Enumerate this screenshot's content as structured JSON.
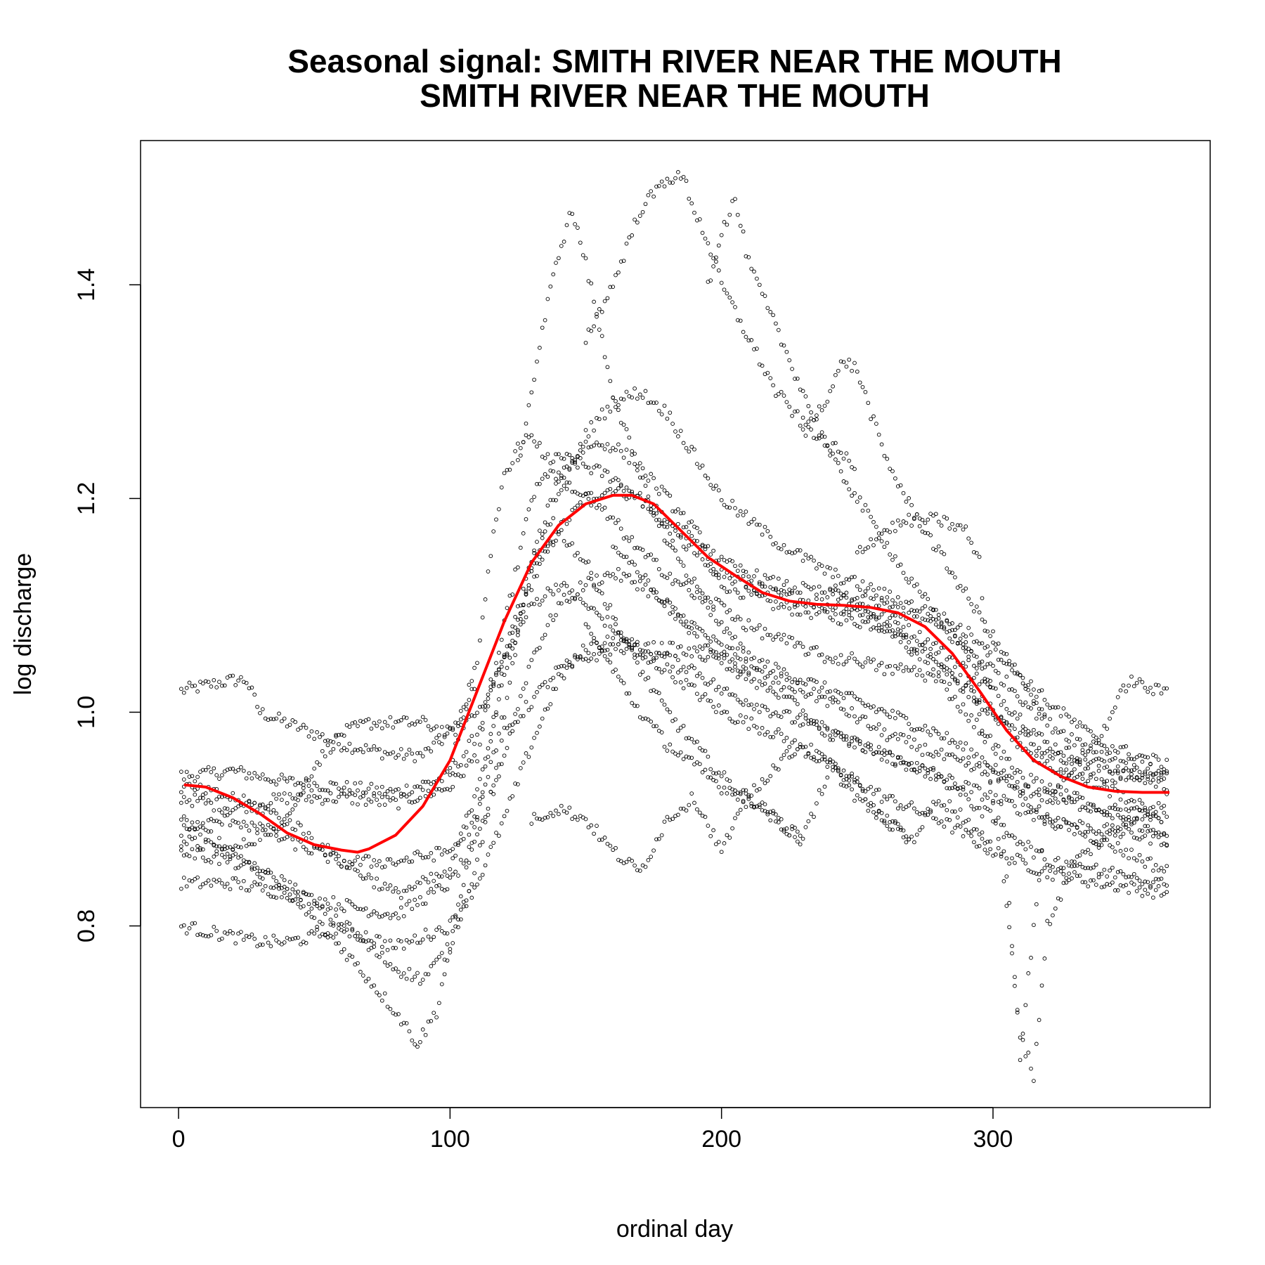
{
  "chart_data": {
    "type": "scatter",
    "title": "Seasonal signal: SMITH RIVER NEAR THE MOUTH",
    "subtitle": "SMITH RIVER NEAR THE MOUTH",
    "xlabel": "ordinal day",
    "ylabel": "log discharge",
    "xlim": [
      -14,
      380
    ],
    "ylim": [
      0.63,
      1.535
    ],
    "x_ticks": [
      0,
      100,
      200,
      300
    ],
    "x_tick_labels": [
      "0",
      "100",
      "200",
      "300"
    ],
    "y_ticks": [
      0.8,
      1.0,
      1.2,
      1.4
    ],
    "y_tick_labels": [
      "0.8",
      "1.0",
      "1.2",
      "1.4"
    ],
    "grid": false,
    "legend": "none",
    "colors": {
      "points": "#000000",
      "smooth": "#ff0000",
      "frame": "#000000"
    },
    "series": [
      {
        "kind": "points",
        "description_in_chart": "daily observations, open circles",
        "traces": [
          {
            "x": [
              1,
              10,
              20,
              25,
              30,
              40,
              60,
              80,
              90,
              100,
              105,
              110
            ],
            "y": [
              1.02,
              1.025,
              1.03,
              1.03,
              1.0,
              0.99,
              0.97,
              0.96,
              0.96,
              0.98,
              1.0,
              1.03
            ]
          },
          {
            "x": [
              1,
              20,
              40,
              60,
              80,
              100,
              110,
              120,
              130,
              140,
              150,
              160,
              170,
              180,
              190,
              200,
              220,
              240,
              260,
              280,
              300,
              320,
              340,
              365
            ],
            "y": [
              0.94,
              0.945,
              0.935,
              0.93,
              0.925,
              0.94,
              0.98,
              1.05,
              1.12,
              1.17,
              1.2,
              1.21,
              1.2,
              1.17,
              1.15,
              1.12,
              1.1,
              1.09,
              1.08,
              1.05,
              1.0,
              0.96,
              0.94,
              0.94
            ]
          },
          {
            "x": [
              1,
              20,
              40,
              60,
              80,
              100,
              110,
              120,
              130,
              140,
              150,
              160,
              170,
              180,
              190,
              200,
              220,
              240,
              260,
              280,
              300,
              320,
              340,
              365
            ],
            "y": [
              0.92,
              0.91,
              0.92,
              0.92,
              0.915,
              0.93,
              0.96,
              1.08,
              1.2,
              1.24,
              1.23,
              1.22,
              1.2,
              1.18,
              1.16,
              1.13,
              1.11,
              1.1,
              1.09,
              1.06,
              1.02,
              0.97,
              0.95,
              0.93
            ]
          },
          {
            "x": [
              1,
              20,
              40,
              50,
              60,
              70,
              80,
              90,
              100,
              110,
              120,
              130,
              140,
              150,
              160,
              170,
              180,
              190,
              200,
              220,
              240,
              260,
              280,
              300,
              320,
              340,
              365
            ],
            "y": [
              0.88,
              0.87,
              0.9,
              0.95,
              0.98,
              0.99,
              0.99,
              0.99,
              0.98,
              1.0,
              1.05,
              1.1,
              1.12,
              1.1,
              1.08,
              1.05,
              1.04,
              1.02,
              1.0,
              0.98,
              0.95,
              0.92,
              0.9,
              0.87,
              0.85,
              0.84,
              0.83
            ]
          },
          {
            "x": [
              1,
              20,
              40,
              60,
              80,
              100,
              110,
              120,
              130,
              140,
              150,
              160,
              170,
              180,
              190,
              200,
              220,
              240,
              260,
              280,
              300,
              320,
              340,
              365
            ],
            "y": [
              0.84,
              0.84,
              0.83,
              0.82,
              0.81,
              0.84,
              0.88,
              0.96,
              1.05,
              1.1,
              1.12,
              1.13,
              1.12,
              1.1,
              1.08,
              1.06,
              1.04,
              1.02,
              1.0,
              0.98,
              0.95,
              0.9,
              0.88,
              0.85
            ]
          },
          {
            "x": [
              1,
              10,
              20,
              30,
              40,
              50,
              60,
              70,
              80,
              90,
              100,
              110,
              120,
              130,
              140,
              150,
              160,
              170,
              180,
              190,
              200,
              220,
              240,
              260,
              280,
              300,
              320,
              340,
              365
            ],
            "y": [
              0.8,
              0.795,
              0.79,
              0.785,
              0.785,
              0.79,
              0.8,
              0.79,
              0.78,
              0.79,
              0.8,
              0.84,
              0.9,
              0.97,
              1.03,
              1.06,
              1.07,
              1.06,
              1.05,
              1.04,
              1.02,
              1.0,
              0.98,
              0.96,
              0.94,
              0.92,
              0.9,
              0.89,
              0.88
            ]
          },
          {
            "x": [
              1,
              20,
              40,
              60,
              70,
              80,
              88,
              95,
              100,
              110,
              120,
              130,
              140,
              150,
              160,
              170,
              180,
              190,
              200,
              210,
              220,
              230
            ],
            "y": [
              0.9,
              0.87,
              0.83,
              0.78,
              0.75,
              0.72,
              0.69,
              0.72,
              0.78,
              0.9,
              1.05,
              1.14,
              1.17,
              1.14,
              1.09,
              1.04,
              1.0,
              0.97,
              0.94,
              0.92,
              0.9,
              0.88
            ]
          },
          {
            "x": [
              1,
              20,
              40,
              60,
              80,
              90,
              100,
              110,
              120,
              140,
              160,
              180,
              200,
              220,
              240,
              260,
              280,
              300,
              320,
              340,
              365
            ],
            "y": [
              0.87,
              0.86,
              0.84,
              0.8,
              0.76,
              0.75,
              0.78,
              0.86,
              0.98,
              1.04,
              1.06,
              1.06,
              1.05,
              1.03,
              1.01,
              0.98,
              0.96,
              0.94,
              0.92,
              0.91,
              0.9
            ]
          },
          {
            "x": [
              1,
              20,
              40,
              60,
              80,
              100,
              110,
              120,
              130,
              140,
              150,
              160,
              170,
              180,
              190,
              200,
              220,
              240,
              260,
              280,
              300,
              320,
              340,
              365
            ],
            "y": [
              0.89,
              0.9,
              0.88,
              0.86,
              0.86,
              0.87,
              0.9,
              1.0,
              1.14,
              1.22,
              1.25,
              1.25,
              1.23,
              1.2,
              1.17,
              1.14,
              1.12,
              1.11,
              1.1,
              1.08,
              1.04,
              0.99,
              0.96,
              0.94
            ]
          },
          {
            "x": [
              1,
              20,
              40,
              60,
              80,
              100,
              110,
              120,
              130,
              140,
              150,
              160,
              170,
              180,
              190,
              200,
              220,
              240,
              260,
              280,
              300,
              320,
              340,
              365
            ],
            "y": [
              0.93,
              0.92,
              0.9,
              0.86,
              0.83,
              0.85,
              0.93,
              1.03,
              1.13,
              1.2,
              1.26,
              1.29,
              1.3,
              1.28,
              1.24,
              1.2,
              1.16,
              1.13,
              1.11,
              1.09,
              1.06,
              1.01,
              0.97,
              0.95
            ]
          },
          {
            "x": [
              125,
              130,
              135,
              140,
              145,
              150,
              155,
              160,
              170,
              180,
              190,
              200,
              210
            ],
            "y": [
              1.23,
              1.3,
              1.37,
              1.43,
              1.47,
              1.42,
              1.36,
              1.3,
              1.22,
              1.16,
              1.12,
              1.08,
              1.05
            ]
          },
          {
            "x": [
              150,
              160,
              170,
              180,
              186,
              190,
              195,
              200,
              210,
              220,
              230,
              240,
              250
            ],
            "y": [
              1.35,
              1.4,
              1.47,
              1.5,
              1.5,
              1.47,
              1.44,
              1.4,
              1.35,
              1.3,
              1.27,
              1.25,
              1.23
            ]
          },
          {
            "x": [
              195,
              200,
              205,
              210,
              220,
              230,
              240,
              250,
              260,
              270,
              280,
              290,
              300
            ],
            "y": [
              1.4,
              1.45,
              1.48,
              1.42,
              1.36,
              1.3,
              1.24,
              1.2,
              1.16,
              1.12,
              1.09,
              1.06,
              1.02
            ]
          },
          {
            "x": [
              230,
              240,
              245,
              250,
              255,
              260,
              270,
              280,
              290,
              300,
              310,
              320
            ],
            "y": [
              1.26,
              1.3,
              1.33,
              1.32,
              1.28,
              1.24,
              1.19,
              1.15,
              1.11,
              1.07,
              1.03,
              0.99
            ]
          },
          {
            "x": [
              250,
              260,
              270,
              280,
              290,
              295,
              300,
              305,
              310,
              320,
              340,
              350,
              360,
              365
            ],
            "y": [
              1.15,
              1.17,
              1.18,
              1.18,
              1.17,
              1.14,
              1.0,
              0.85,
              0.68,
              0.92,
              0.98,
              1.03,
              1.02,
              1.02
            ]
          },
          {
            "x": [
              290,
              295,
              300,
              305,
              310,
              315,
              320,
              330,
              340,
              350,
              360,
              365
            ],
            "y": [
              1.06,
              1.0,
              0.92,
              0.82,
              0.7,
              0.66,
              0.8,
              0.86,
              0.88,
              0.9,
              0.91,
              0.92
            ]
          },
          {
            "x": [
              130,
              140,
              150,
              160,
              170,
              180,
              190,
              200,
              210,
              220,
              230,
              240,
              250,
              260,
              270
            ],
            "y": [
              0.9,
              0.91,
              0.9,
              0.87,
              0.85,
              0.9,
              0.92,
              0.87,
              0.92,
              0.9,
              0.88,
              0.95,
              0.93,
              0.9,
              0.88
            ]
          },
          {
            "x": [
              150,
              160,
              170,
              180,
              190,
              200,
              210,
              220,
              230,
              240,
              250,
              260,
              270,
              280,
              290,
              300
            ],
            "y": [
              1.08,
              1.04,
              1.0,
              0.97,
              0.95,
              0.93,
              0.92,
              0.95,
              0.97,
              0.95,
              0.92,
              0.9,
              0.88,
              0.92,
              0.9,
              0.87
            ]
          },
          {
            "x": [
              160,
              170,
              180,
              190,
              200,
              210,
              220,
              230,
              240,
              250,
              260,
              270,
              280,
              290,
              300,
              310,
              320,
              330,
              340,
              350,
              360,
              365
            ],
            "y": [
              1.16,
              1.13,
              1.1,
              1.07,
              1.05,
              1.03,
              1.02,
              1.0,
              0.98,
              0.97,
              0.96,
              0.95,
              0.94,
              0.92,
              0.9,
              0.88,
              0.86,
              0.86,
              0.85,
              0.85,
              0.84,
              0.84
            ]
          },
          {
            "x": [
              240,
              250,
              260,
              270,
              280,
              290,
              300,
              310,
              320,
              330,
              340,
              350,
              360,
              365
            ],
            "y": [
              1.12,
              1.1,
              1.08,
              1.06,
              1.04,
              1.02,
              1.0,
              0.97,
              0.95,
              0.94,
              0.93,
              0.92,
              0.9,
              0.88
            ]
          },
          {
            "x": [
              100,
              110,
              115,
              120,
              125,
              130,
              140,
              150,
              160,
              170,
              180,
              190,
              200,
              210,
              220,
              230,
              240,
              250,
              260,
              270,
              280,
              290,
              300,
              310,
              320,
              330,
              340,
              350,
              365
            ],
            "y": [
              0.95,
              1.05,
              1.15,
              1.22,
              1.25,
              1.26,
              1.22,
              1.2,
              1.18,
              1.15,
              1.13,
              1.11,
              1.1,
              1.08,
              1.07,
              1.06,
              1.05,
              1.05,
              1.04,
              1.04,
              1.03,
              1.0,
              0.97,
              0.94,
              0.93,
              0.92,
              0.91,
              0.9,
              0.88
            ]
          }
        ]
      },
      {
        "kind": "smooth",
        "description_in_chart": "fitted seasonal signal, red line",
        "x": [
          2,
          10,
          20,
          30,
          40,
          50,
          60,
          66,
          70,
          80,
          90,
          100,
          110,
          120,
          130,
          140,
          150,
          160,
          167,
          175,
          185,
          195,
          205,
          215,
          225,
          235,
          245,
          255,
          265,
          275,
          285,
          295,
          305,
          315,
          325,
          335,
          345,
          355,
          365
        ],
        "y": [
          0.932,
          0.93,
          0.92,
          0.905,
          0.887,
          0.876,
          0.871,
          0.869,
          0.872,
          0.885,
          0.912,
          0.955,
          1.02,
          1.085,
          1.14,
          1.175,
          1.195,
          1.203,
          1.203,
          1.195,
          1.17,
          1.145,
          1.128,
          1.112,
          1.104,
          1.101,
          1.1,
          1.098,
          1.093,
          1.08,
          1.055,
          1.02,
          0.983,
          0.955,
          0.94,
          0.93,
          0.926,
          0.925,
          0.925
        ]
      }
    ]
  }
}
